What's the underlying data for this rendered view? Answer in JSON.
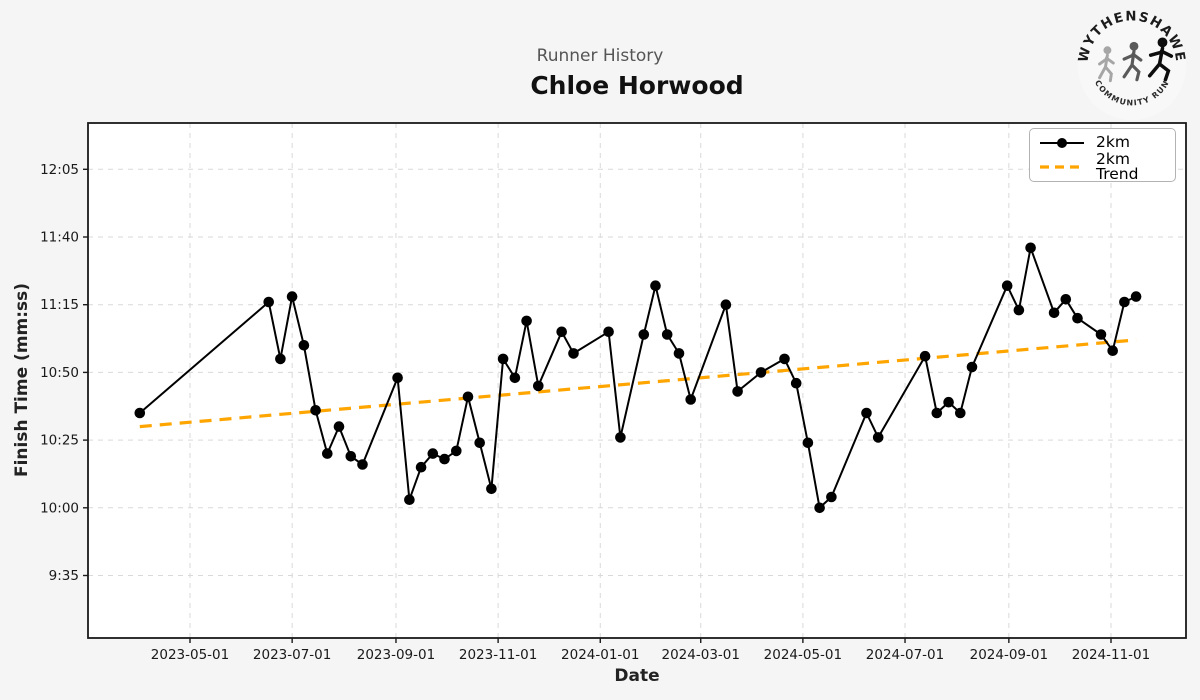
{
  "header": {
    "subtitle": "Runner History",
    "title": "Chloe Horwood"
  },
  "logo": {
    "top_text": "WYTHENSHAWE",
    "bottom_text": "COMMUNITY RUN"
  },
  "chart_data": {
    "type": "line",
    "title": "Chloe Horwood",
    "subtitle": "Runner History",
    "xlabel": "Date",
    "ylabel": "Finish Time (mm:ss)",
    "grid": true,
    "legend_position": "upper right",
    "x_ticks": [
      "2023-05-01",
      "2023-07-01",
      "2023-09-01",
      "2023-11-01",
      "2024-01-01",
      "2024-03-01",
      "2024-05-01",
      "2024-07-01",
      "2024-09-01",
      "2024-11-01"
    ],
    "y_ticks": [
      "9:35",
      "10:00",
      "10:25",
      "10:50",
      "11:15",
      "11:40",
      "12:05"
    ],
    "ylim": [
      "9:12",
      "12:22"
    ],
    "colors": {
      "series": "#000000",
      "trend": "#FFA500",
      "grid": "#d9d9d9",
      "plot_bg": "#ffffff",
      "figure_bg": "#f5f5f5"
    },
    "series": [
      {
        "name": "2km",
        "style": "solid-line-with-markers",
        "color": "#000000",
        "points": [
          {
            "date": "2023-04-01",
            "time": "10:35"
          },
          {
            "date": "2023-06-17",
            "time": "11:16"
          },
          {
            "date": "2023-06-24",
            "time": "10:55"
          },
          {
            "date": "2023-07-01",
            "time": "11:18"
          },
          {
            "date": "2023-07-08",
            "time": "11:00"
          },
          {
            "date": "2023-07-15",
            "time": "10:36"
          },
          {
            "date": "2023-07-22",
            "time": "10:20"
          },
          {
            "date": "2023-07-29",
            "time": "10:30"
          },
          {
            "date": "2023-08-05",
            "time": "10:19"
          },
          {
            "date": "2023-08-12",
            "time": "10:16"
          },
          {
            "date": "2023-09-02",
            "time": "10:48"
          },
          {
            "date": "2023-09-09",
            "time": "10:03"
          },
          {
            "date": "2023-09-16",
            "time": "10:15"
          },
          {
            "date": "2023-09-23",
            "time": "10:20"
          },
          {
            "date": "2023-09-30",
            "time": "10:18"
          },
          {
            "date": "2023-10-07",
            "time": "10:21"
          },
          {
            "date": "2023-10-14",
            "time": "10:41"
          },
          {
            "date": "2023-10-21",
            "time": "10:24"
          },
          {
            "date": "2023-10-28",
            "time": "10:07"
          },
          {
            "date": "2023-11-04",
            "time": "10:55"
          },
          {
            "date": "2023-11-11",
            "time": "10:48"
          },
          {
            "date": "2023-11-18",
            "time": "11:09"
          },
          {
            "date": "2023-11-25",
            "time": "10:45"
          },
          {
            "date": "2023-12-09",
            "time": "11:05"
          },
          {
            "date": "2023-12-16",
            "time": "10:57"
          },
          {
            "date": "2024-01-06",
            "time": "11:05"
          },
          {
            "date": "2024-01-13",
            "time": "10:26"
          },
          {
            "date": "2024-01-27",
            "time": "11:04"
          },
          {
            "date": "2024-02-03",
            "time": "11:22"
          },
          {
            "date": "2024-02-10",
            "time": "11:04"
          },
          {
            "date": "2024-02-17",
            "time": "10:57"
          },
          {
            "date": "2024-02-24",
            "time": "10:40"
          },
          {
            "date": "2024-03-16",
            "time": "11:15"
          },
          {
            "date": "2024-03-23",
            "time": "10:43"
          },
          {
            "date": "2024-04-06",
            "time": "10:50"
          },
          {
            "date": "2024-04-20",
            "time": "10:55"
          },
          {
            "date": "2024-04-27",
            "time": "10:46"
          },
          {
            "date": "2024-05-04",
            "time": "10:24"
          },
          {
            "date": "2024-05-11",
            "time": "10:00"
          },
          {
            "date": "2024-05-18",
            "time": "10:04"
          },
          {
            "date": "2024-06-08",
            "time": "10:35"
          },
          {
            "date": "2024-06-15",
            "time": "10:26"
          },
          {
            "date": "2024-07-13",
            "time": "10:56"
          },
          {
            "date": "2024-07-20",
            "time": "10:35"
          },
          {
            "date": "2024-07-27",
            "time": "10:39"
          },
          {
            "date": "2024-08-03",
            "time": "10:35"
          },
          {
            "date": "2024-08-10",
            "time": "10:52"
          },
          {
            "date": "2024-08-31",
            "time": "11:22"
          },
          {
            "date": "2024-09-07",
            "time": "11:13"
          },
          {
            "date": "2024-09-14",
            "time": "11:36"
          },
          {
            "date": "2024-09-28",
            "time": "11:12"
          },
          {
            "date": "2024-10-05",
            "time": "11:17"
          },
          {
            "date": "2024-10-12",
            "time": "11:10"
          },
          {
            "date": "2024-10-26",
            "time": "11:04"
          },
          {
            "date": "2024-11-02",
            "time": "10:58"
          },
          {
            "date": "2024-11-09",
            "time": "11:16"
          },
          {
            "date": "2024-11-16",
            "time": "11:18"
          }
        ]
      },
      {
        "name": "2km Trend",
        "style": "dashed-line",
        "color": "#FFA500",
        "points": [
          {
            "date": "2023-04-01",
            "time": "10:30"
          },
          {
            "date": "2024-11-16",
            "time": "11:02"
          }
        ]
      }
    ]
  }
}
